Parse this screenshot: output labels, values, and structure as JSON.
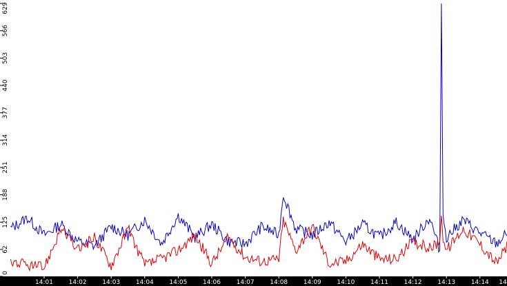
{
  "chart_data": {
    "type": "line",
    "title": "",
    "xlabel": "",
    "ylabel": "",
    "ylim": [
      0,
      629
    ],
    "y_ticks": [
      "0",
      "62",
      "125",
      "188",
      "251",
      "314",
      "377",
      "440",
      "503",
      "566",
      "629"
    ],
    "x_ticks": [
      "14:01",
      "14:02",
      "14:03",
      "14:04",
      "14:05",
      "14:06",
      "14:07",
      "14:08",
      "14:09",
      "14:10",
      "14:11",
      "14:12",
      "14:13",
      "14:14",
      "14"
    ],
    "grid": false,
    "legend": "none",
    "x_range": [
      "14:00",
      "14:15"
    ],
    "colors": {
      "blue": "#0000cc",
      "red": "#dd0000",
      "axis_bar": "#000000",
      "tick_text": "#ffffff",
      "y_tick_text": "#000000"
    },
    "series": [
      {
        "color": "#0000cc",
        "x": [
          "14:00",
          "14:00:30",
          "14:01",
          "14:01:30",
          "14:02",
          "14:02:30",
          "14:03",
          "14:03:30",
          "14:04",
          "14:04:30",
          "14:05",
          "14:05:30",
          "14:06",
          "14:06:30",
          "14:07",
          "14:07:30",
          "14:08",
          "14:08:08",
          "14:08:30",
          "14:09",
          "14:09:30",
          "14:10",
          "14:10:30",
          "14:11",
          "14:11:30",
          "14:12",
          "14:12:30",
          "14:12:48",
          "14:12:51",
          "14:12:54",
          "14:13",
          "14:13:30",
          "14:14",
          "14:14:30",
          "14:15"
        ],
        "values": [
          110,
          135,
          95,
          120,
          80,
          70,
          115,
          95,
          130,
          75,
          140,
          90,
          120,
          80,
          75,
          115,
          95,
          190,
          110,
          95,
          125,
          80,
          120,
          90,
          125,
          85,
          135,
          60,
          629,
          140,
          90,
          130,
          100,
          75,
          115
        ]
      },
      {
        "color": "#dd0000",
        "x": [
          "14:00",
          "14:00:30",
          "14:01",
          "14:01:30",
          "14:02",
          "14:02:30",
          "14:03",
          "14:03:30",
          "14:04",
          "14:04:30",
          "14:05",
          "14:05:30",
          "14:06",
          "14:06:30",
          "14:07",
          "14:07:30",
          "14:08",
          "14:08:08",
          "14:08:30",
          "14:09",
          "14:09:30",
          "14:10",
          "14:10:30",
          "14:11",
          "14:11:30",
          "14:12",
          "14:12:30",
          "14:12:48",
          "14:12:51",
          "14:12:54",
          "14:13",
          "14:13:30",
          "14:14",
          "14:14:30",
          "14:15"
        ],
        "values": [
          35,
          25,
          20,
          110,
          60,
          90,
          25,
          110,
          25,
          40,
          60,
          95,
          30,
          90,
          45,
          35,
          40,
          130,
          60,
          115,
          30,
          35,
          75,
          40,
          40,
          80,
          65,
          80,
          140,
          90,
          60,
          110,
          75,
          30,
          95
        ]
      }
    ]
  }
}
